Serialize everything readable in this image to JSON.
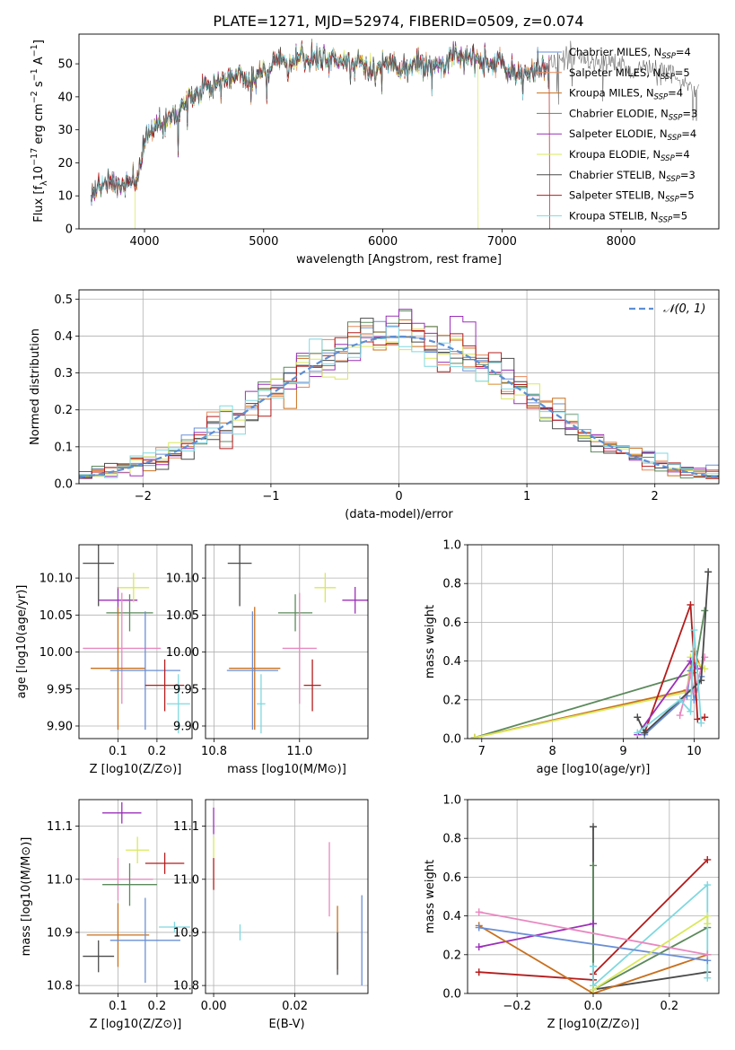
{
  "title": "PLATE=1271, MJD=52974, FIBERID=0509, z=0.074",
  "colors": {
    "Chabrier MILES": "#6a8fd6",
    "Salpeter MILES": "#e5895a",
    "Kroupa MILES": "#c8701e",
    "Chabrier ELODIE": "#5c8a5c",
    "Salpeter ELODIE": "#9b30b8",
    "Kroupa ELODIE": "#d9e85a",
    "Chabrier STELIB": "#4a4a4a",
    "Salpeter STELIB": "#b51c1c",
    "Kroupa STELIB": "#7fd8e0",
    "Pink": "#e888c0",
    "Gauss": "#5b8fd6"
  },
  "legend": {
    "models": [
      {
        "prefix": "Chabrier MILES, N",
        "sub": "SSP",
        "suffix": "=4",
        "key": "Chabrier MILES"
      },
      {
        "prefix": "Salpeter MILES, N",
        "sub": "SSP",
        "suffix": "=5",
        "key": "Salpeter MILES"
      },
      {
        "prefix": "Kroupa MILES, N",
        "sub": "SSP",
        "suffix": "=4",
        "key": "Kroupa MILES"
      },
      {
        "prefix": "Chabrier ELODIE, N",
        "sub": "SSP",
        "suffix": "=3",
        "key": "Chabrier ELODIE"
      },
      {
        "prefix": "Salpeter ELODIE, N",
        "sub": "SSP",
        "suffix": "=4",
        "key": "Salpeter ELODIE"
      },
      {
        "prefix": "Kroupa ELODIE, N",
        "sub": "SSP",
        "suffix": "=4",
        "key": "Kroupa ELODIE"
      },
      {
        "prefix": "Chabrier STELIB, N",
        "sub": "SSP",
        "suffix": "=3",
        "key": "Chabrier STELIB"
      },
      {
        "prefix": "Salpeter STELIB, N",
        "sub": "SSP",
        "suffix": "=5",
        "key": "Salpeter STELIB"
      },
      {
        "prefix": "Kroupa STELIB, N",
        "sub": "SSP",
        "suffix": "=5",
        "key": "Kroupa STELIB"
      }
    ],
    "gauss": "𝒩(0, 1)"
  },
  "chart_data": [
    {
      "type": "line",
      "panel": "spectrum",
      "xlabel": "wavelength [Angstrom, rest frame]",
      "ylabel": "Flux [f_λ 10^-17 erg cm^-2 s^-1 A^-1]",
      "xlim": [
        3450,
        8820
      ],
      "ylim": [
        0,
        59
      ],
      "xticks": [
        4000,
        5000,
        6000,
        7000,
        8000
      ],
      "yticks": [
        0,
        10,
        20,
        30,
        40,
        50
      ],
      "continuum": [
        [
          3550,
          10
        ],
        [
          3620,
          13
        ],
        [
          3700,
          14
        ],
        [
          3800,
          13
        ],
        [
          3860,
          15
        ],
        [
          3920,
          13
        ],
        [
          3970,
          20
        ],
        [
          4000,
          28
        ],
        [
          4100,
          31
        ],
        [
          4200,
          33
        ],
        [
          4300,
          36
        ],
        [
          4400,
          40
        ],
        [
          4500,
          43
        ],
        [
          4600,
          44
        ],
        [
          4700,
          46
        ],
        [
          4800,
          46
        ],
        [
          4900,
          45
        ],
        [
          5000,
          48
        ],
        [
          5100,
          51
        ],
        [
          5200,
          50
        ],
        [
          5300,
          52
        ],
        [
          5400,
          51
        ],
        [
          5500,
          52
        ],
        [
          5600,
          51
        ],
        [
          5700,
          50
        ],
        [
          5800,
          51
        ],
        [
          5900,
          48
        ],
        [
          6000,
          50
        ],
        [
          6100,
          50
        ],
        [
          6200,
          49
        ],
        [
          6300,
          50
        ],
        [
          6400,
          50
        ],
        [
          6500,
          50
        ],
        [
          6563,
          52
        ],
        [
          6700,
          52
        ],
        [
          6800,
          51
        ],
        [
          6900,
          50
        ],
        [
          7000,
          51
        ],
        [
          7050,
          48
        ],
        [
          7100,
          46
        ],
        [
          7200,
          47
        ],
        [
          7300,
          49
        ],
        [
          7400,
          50
        ],
        [
          7500,
          51
        ],
        [
          7600,
          53
        ],
        [
          7700,
          51
        ],
        [
          7800,
          50
        ],
        [
          7900,
          50
        ],
        [
          8000,
          50
        ],
        [
          8100,
          48
        ],
        [
          8200,
          49
        ],
        [
          8300,
          47
        ],
        [
          8400,
          47
        ],
        [
          8500,
          44
        ],
        [
          8600,
          43
        ],
        [
          8650,
          42
        ]
      ],
      "dropouts": [
        {
          "series": "Kroupa ELODIE",
          "range": [
            3920,
            6800
          ]
        },
        {
          "series": "Salpeter STELIB",
          "range": [
            3550,
            7400
          ]
        }
      ]
    },
    {
      "type": "step",
      "panel": "residual_histogram",
      "xlabel": "(data-model)/error",
      "ylabel": "Normed distribution",
      "xlim": [
        -2.5,
        2.5
      ],
      "ylim": [
        0,
        0.525
      ],
      "xticks": [
        -2,
        -1,
        0,
        1,
        2
      ],
      "yticks": [
        0.0,
        0.1,
        0.2,
        0.3,
        0.4,
        0.5
      ],
      "bins": 50,
      "series_colors": [
        "Chabrier MILES",
        "Salpeter MILES",
        "Kroupa MILES",
        "Chabrier ELODIE",
        "Salpeter ELODIE",
        "Kroupa ELODIE",
        "Chabrier STELIB",
        "Salpeter STELIB",
        "Kroupa STELIB"
      ],
      "reference_curve": "gaussian mean 0 sigma 1"
    },
    {
      "type": "errorbar",
      "panel": "age_vs_Z",
      "xlabel": "Z [log10(Z/Z⊙)]",
      "ylabel": "age  [log10(age/yr)]",
      "xlim": [
        0.0,
        0.29
      ],
      "ylim": [
        9.883,
        10.145
      ],
      "xticks": [
        0.1,
        0.2
      ],
      "yticks": [
        9.9,
        9.95,
        10.0,
        10.05,
        10.1
      ],
      "points": [
        {
          "c": "Chabrier STELIB",
          "x": 0.05,
          "xe": 0.04,
          "y": 10.12,
          "ye": 0.058
        },
        {
          "c": "Salpeter ELODIE",
          "x": 0.1,
          "xe": 0.05,
          "y": 10.07,
          "ye": 0.018
        },
        {
          "c": "Kroupa ELODIE",
          "x": 0.14,
          "xe": 0.04,
          "y": 10.087,
          "ye": 0.02
        },
        {
          "c": "Chabrier ELODIE",
          "x": 0.13,
          "xe": 0.06,
          "y": 10.053,
          "ye": 0.025
        },
        {
          "c": "Pink",
          "x": 0.11,
          "xe": 0.1,
          "y": 10.005,
          "ye": 0.075
        },
        {
          "c": "Kroupa MILES",
          "x": 0.1,
          "xe": 0.07,
          "y": 9.978,
          "ye": 0.083
        },
        {
          "c": "Chabrier MILES",
          "x": 0.17,
          "xe": 0.09,
          "y": 9.975,
          "ye": 0.08
        },
        {
          "c": "Salpeter STELIB",
          "x": 0.22,
          "xe": 0.05,
          "y": 9.955,
          "ye": 0.035
        },
        {
          "c": "Kroupa STELIB",
          "x": 0.255,
          "xe": 0.03,
          "y": 9.93,
          "ye": 0.04
        }
      ]
    },
    {
      "type": "errorbar",
      "panel": "age_vs_mass",
      "xlabel": "mass [log10(M/M⊙)]",
      "ylabel": "",
      "xlim": [
        10.78,
        11.16
      ],
      "ylim": [
        9.883,
        10.145
      ],
      "xticks": [
        10.8,
        11.0
      ],
      "yticks": [
        9.9,
        9.95,
        10.0,
        10.05,
        10.1
      ],
      "points": [
        {
          "c": "Chabrier STELIB",
          "x": 10.86,
          "xe": 0.028,
          "y": 10.12,
          "ye": 0.058
        },
        {
          "c": "Kroupa ELODIE",
          "x": 11.06,
          "xe": 0.025,
          "y": 10.087,
          "ye": 0.02
        },
        {
          "c": "Salpeter ELODIE",
          "x": 11.13,
          "xe": 0.03,
          "y": 10.07,
          "ye": 0.018
        },
        {
          "c": "Chabrier ELODIE",
          "x": 10.99,
          "xe": 0.04,
          "y": 10.053,
          "ye": 0.025
        },
        {
          "c": "Pink",
          "x": 11.0,
          "xe": 0.04,
          "y": 10.005,
          "ye": 0.075
        },
        {
          "c": "Kroupa MILES",
          "x": 10.895,
          "xe": 0.06,
          "y": 9.978,
          "ye": 0.083
        },
        {
          "c": "Chabrier MILES",
          "x": 10.89,
          "xe": 0.06,
          "y": 9.975,
          "ye": 0.08
        },
        {
          "c": "Salpeter STELIB",
          "x": 11.03,
          "xe": 0.02,
          "y": 9.955,
          "ye": 0.035
        },
        {
          "c": "Kroupa STELIB",
          "x": 10.91,
          "xe": 0.01,
          "y": 9.93,
          "ye": 0.04
        }
      ]
    },
    {
      "type": "line",
      "panel": "massweight_vs_age",
      "xlabel": "age  [log10(age/yr)]",
      "ylabel": "mass weight",
      "xlim": [
        6.8,
        10.35
      ],
      "ylim": [
        0,
        1.0
      ],
      "xticks": [
        7,
        8,
        9,
        10
      ],
      "yticks": [
        0.0,
        0.2,
        0.4,
        0.6,
        0.8,
        1.0
      ],
      "series": [
        {
          "c": "Chabrier ELODIE",
          "pts": [
            [
              6.9,
              0.005
            ],
            [
              10.0,
              0.34
            ],
            [
              10.15,
              0.66
            ]
          ]
        },
        {
          "c": "Kroupa MILES",
          "pts": [
            [
              6.9,
              0.005
            ],
            [
              9.9,
              0.25
            ],
            [
              10.0,
              0.45
            ],
            [
              10.1,
              0.36
            ]
          ]
        },
        {
          "c": "Kroupa ELODIE",
          "pts": [
            [
              6.9,
              0.005
            ],
            [
              9.9,
              0.24
            ],
            [
              9.95,
              0.42
            ],
            [
              10.15,
              0.36
            ]
          ]
        },
        {
          "c": "Chabrier MILES",
          "pts": [
            [
              9.3,
              0.02
            ],
            [
              9.9,
              0.22
            ],
            [
              9.95,
              0.35
            ],
            [
              10.0,
              0.2
            ],
            [
              10.1,
              0.32
            ]
          ]
        },
        {
          "c": "Pink",
          "pts": [
            [
              9.8,
              0.12
            ],
            [
              9.95,
              0.33
            ],
            [
              10.0,
              0.24
            ],
            [
              10.15,
              0.42
            ]
          ]
        },
        {
          "c": "Salpeter STELIB",
          "pts": [
            [
              9.3,
              0.03
            ],
            [
              9.95,
              0.69
            ],
            [
              10.05,
              0.1
            ],
            [
              10.15,
              0.11
            ]
          ]
        },
        {
          "c": "Salpeter ELODIE",
          "pts": [
            [
              9.2,
              0.02
            ],
            [
              9.95,
              0.4
            ],
            [
              10.05,
              0.36
            ]
          ]
        },
        {
          "c": "Chabrier STELIB",
          "pts": [
            [
              9.2,
              0.11
            ],
            [
              9.3,
              0.03
            ],
            [
              10.1,
              0.3
            ],
            [
              10.2,
              0.86
            ]
          ]
        },
        {
          "c": "Kroupa STELIB",
          "pts": [
            [
              9.2,
              0.03
            ],
            [
              9.8,
              0.2
            ],
            [
              9.95,
              0.14
            ],
            [
              10.0,
              0.56
            ],
            [
              10.1,
              0.08
            ]
          ]
        }
      ]
    },
    {
      "type": "errorbar",
      "panel": "mass_vs_Z",
      "xlabel": "Z [log10(Z/Z⊙)]",
      "ylabel": "mass [log10(M/M⊙)]",
      "xlim": [
        0.0,
        0.29
      ],
      "ylim": [
        10.785,
        11.15
      ],
      "xticks": [
        0.1,
        0.2
      ],
      "yticks": [
        10.8,
        10.9,
        11.0,
        11.1
      ],
      "points": [
        {
          "c": "Salpeter ELODIE",
          "x": 0.11,
          "xe": 0.05,
          "y": 11.125,
          "ye": 0.02
        },
        {
          "c": "Kroupa ELODIE",
          "x": 0.15,
          "xe": 0.03,
          "y": 11.055,
          "ye": 0.025
        },
        {
          "c": "Salpeter STELIB",
          "x": 0.22,
          "xe": 0.05,
          "y": 11.03,
          "ye": 0.02
        },
        {
          "c": "Pink",
          "x": 0.1,
          "xe": 0.09,
          "y": 11.0,
          "ye": 0.04
        },
        {
          "c": "Chabrier ELODIE",
          "x": 0.13,
          "xe": 0.07,
          "y": 10.99,
          "ye": 0.04
        },
        {
          "c": "Kroupa STELIB",
          "x": 0.245,
          "xe": 0.04,
          "y": 10.91,
          "ye": 0.01
        },
        {
          "c": "Kroupa MILES",
          "x": 0.1,
          "xe": 0.08,
          "y": 10.895,
          "ye": 0.06
        },
        {
          "c": "Chabrier MILES",
          "x": 0.17,
          "xe": 0.09,
          "y": 10.885,
          "ye": 0.08
        },
        {
          "c": "Chabrier STELIB",
          "x": 0.05,
          "xe": 0.04,
          "y": 10.855,
          "ye": 0.03
        }
      ]
    },
    {
      "type": "errorbar",
      "panel": "mass_vs_EBV",
      "xlabel": "E(B-V)",
      "ylabel": "",
      "xlim": [
        -0.002,
        0.038
      ],
      "ylim": [
        10.785,
        11.15
      ],
      "xticks": [
        0.0,
        0.02
      ],
      "yticks": [
        10.8,
        10.9,
        11.0,
        11.1
      ],
      "points": [
        {
          "c": "Salpeter ELODIE",
          "x": 0.0,
          "xe": 0,
          "y": 11.11,
          "ye": 0.025
        },
        {
          "c": "Kroupa ELODIE",
          "x": 0.0,
          "xe": 0,
          "y": 11.06,
          "ye": 0.02
        },
        {
          "c": "Salpeter STELIB",
          "x": 0.0,
          "xe": 0,
          "y": 11.01,
          "ye": 0.03
        },
        {
          "c": "Kroupa STELIB",
          "x": 0.0065,
          "xe": 0,
          "y": 10.9,
          "ye": 0.015
        },
        {
          "c": "Pink",
          "x": 0.0285,
          "xe": 0,
          "y": 11.0,
          "ye": 0.07
        },
        {
          "c": "Kroupa MILES",
          "x": 0.0305,
          "xe": 0,
          "y": 10.89,
          "ye": 0.06
        },
        {
          "c": "Chabrier STELIB",
          "x": 0.0305,
          "xe": 0,
          "y": 10.86,
          "ye": 0.04
        },
        {
          "c": "Chabrier MILES",
          "x": 0.0365,
          "xe": 0,
          "y": 10.885,
          "ye": 0.085
        }
      ]
    },
    {
      "type": "line",
      "panel": "massweight_vs_Z",
      "xlabel": "Z [log10(Z/Z⊙)]",
      "ylabel": "mass weight",
      "xlim": [
        -0.33,
        0.33
      ],
      "ylim": [
        0,
        1.0
      ],
      "xticks": [
        -0.2,
        0.0,
        0.2
      ],
      "yticks": [
        0.0,
        0.2,
        0.4,
        0.6,
        0.8,
        1.0
      ],
      "series": [
        {
          "c": "Chabrier STELIB",
          "pts": [
            [
              0.0,
              0.86
            ],
            [
              0.0,
              0.02
            ],
            [
              0.3,
              0.11
            ]
          ]
        },
        {
          "c": "Chabrier ELODIE",
          "pts": [
            [
              0.0,
              0.66
            ],
            [
              0.0,
              0.02
            ],
            [
              0.3,
              0.34
            ]
          ]
        },
        {
          "c": "Salpeter STELIB",
          "pts": [
            [
              -0.3,
              0.11
            ],
            [
              0.0,
              0.07
            ],
            [
              0.0,
              0.1
            ],
            [
              0.3,
              0.69
            ]
          ]
        },
        {
          "c": "Kroupa STELIB",
          "pts": [
            [
              0.0,
              0.14
            ],
            [
              0.0,
              0.04
            ],
            [
              0.3,
              0.56
            ],
            [
              0.3,
              0.08
            ]
          ]
        },
        {
          "c": "Salpeter ELODIE",
          "pts": [
            [
              -0.3,
              0.24
            ],
            [
              0.0,
              0.36
            ]
          ]
        },
        {
          "c": "Kroupa MILES",
          "pts": [
            [
              -0.3,
              0.35
            ],
            [
              0.0,
              0.0
            ],
            [
              0.3,
              0.2
            ]
          ]
        },
        {
          "c": "Chabrier MILES",
          "pts": [
            [
              -0.3,
              0.34
            ],
            [
              0.3,
              0.17
            ]
          ]
        },
        {
          "c": "Pink",
          "pts": [
            [
              -0.3,
              0.42
            ],
            [
              0.3,
              0.2
            ]
          ]
        },
        {
          "c": "Kroupa ELODIE",
          "pts": [
            [
              0.0,
              0.02
            ],
            [
              0.3,
              0.4
            ],
            [
              0.3,
              0.36
            ]
          ]
        }
      ]
    }
  ]
}
